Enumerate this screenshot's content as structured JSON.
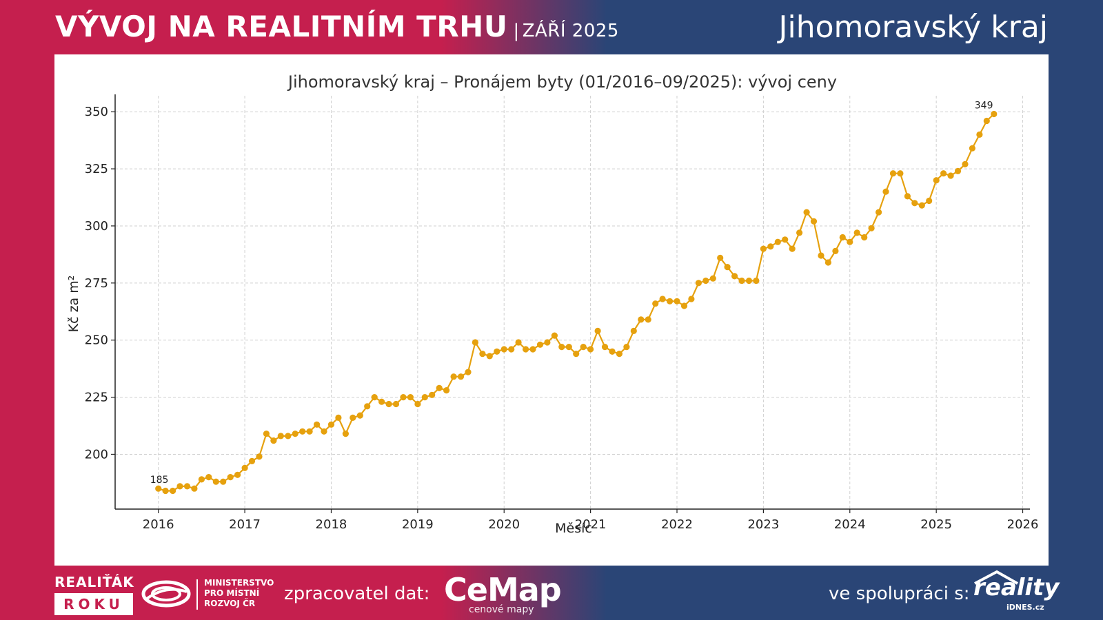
{
  "header": {
    "title": "VÝVOJ NA REALITNÍM TRHU",
    "separator": "|",
    "date": "ZÁŘÍ 2025",
    "region": "Jihomoravský kraj"
  },
  "footer": {
    "realitak_top": "REALIŤÁK",
    "realitak_box": "ROKU",
    "mmr_text": "MINISTERSTVO\nPRO MÍSTNÍ\nROZVOJ ČR",
    "zpracovatel_label": "zpracovatel dat:",
    "cemap_logo": "CeMap",
    "cemap_sub": "cenové mapy",
    "spoluprace_label": "ve spolupráci s:",
    "reality_logo": "reality",
    "reality_sub": "iDNES.cz",
    "logo_icons": [
      "mmr-logo-icon",
      "reality-roof-icon"
    ]
  },
  "chart_data": {
    "type": "line",
    "title": "Jihomoravský kraj – Pronájem byty (01/2016–09/2025): vývoj ceny",
    "xlabel": "Měsíc",
    "ylabel": "Kč za m²",
    "xlim": [
      "2015-07",
      "2026-02"
    ],
    "ylim": [
      176,
      357
    ],
    "xticks": [
      "2016",
      "2017",
      "2018",
      "2019",
      "2020",
      "2021",
      "2022",
      "2023",
      "2024",
      "2025",
      "2026"
    ],
    "yticks": [
      200,
      225,
      250,
      275,
      300,
      325,
      350
    ],
    "grid": true,
    "color": "#e6a10e",
    "start": "2016-01",
    "annotations": [
      {
        "label": "185",
        "month": "2016-01",
        "value": 185
      },
      {
        "label": "349",
        "month": "2025-09",
        "value": 349
      }
    ],
    "series": [
      {
        "values": [
          185,
          184,
          184,
          186,
          186,
          185,
          189,
          190,
          188,
          188,
          190,
          191,
          194,
          197,
          199,
          209,
          206,
          208,
          208,
          209,
          210,
          210,
          213,
          210,
          213,
          216,
          209,
          216,
          217,
          221,
          225,
          223,
          222,
          222,
          225,
          225,
          222,
          225,
          226,
          229,
          228,
          234,
          234,
          236,
          249,
          244,
          243,
          245,
          246,
          246,
          249,
          246,
          246,
          248,
          249,
          252,
          247,
          247,
          244,
          247,
          246,
          254,
          247,
          245,
          244,
          247,
          254,
          259,
          259,
          266,
          268,
          267,
          267,
          265,
          268,
          275,
          276,
          277,
          286,
          282,
          278,
          276,
          276,
          276,
          290,
          291,
          293,
          294,
          290,
          297,
          306,
          302,
          287,
          284,
          289,
          295,
          293,
          297,
          295,
          299,
          306,
          315,
          323,
          323,
          313,
          310,
          309,
          311,
          320,
          323,
          322,
          324,
          327,
          334,
          340,
          346,
          349
        ]
      }
    ]
  }
}
